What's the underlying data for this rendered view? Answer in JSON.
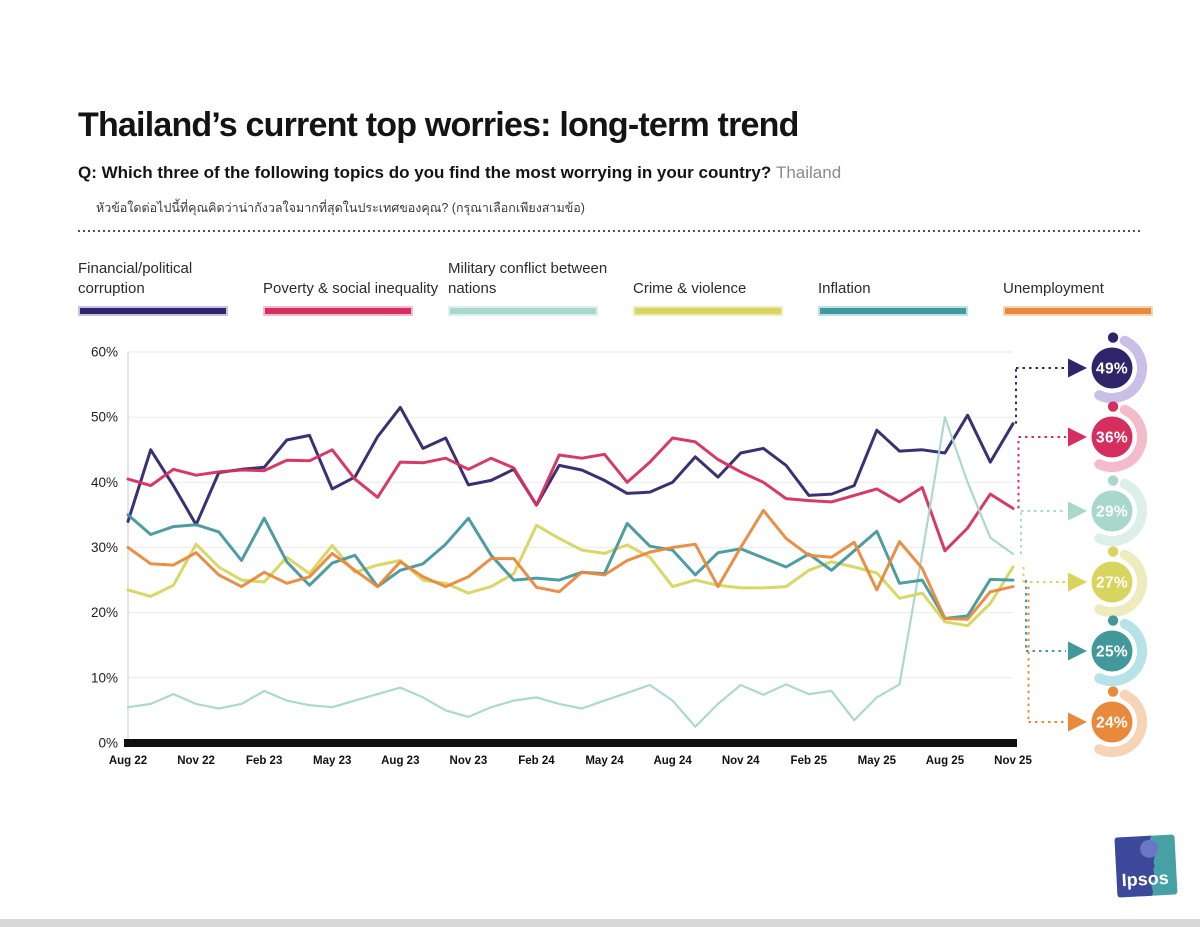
{
  "header": {
    "title": "Thailand’s current top worries: long-term trend",
    "question_prefix": "Q: Which three of the following topics do you find the most worrying in your country?",
    "question_country": "Thailand",
    "question_thai": "หัวข้อใดต่อไปนี้ที่คุณคิดว่าน่ากังวลใจมากที่สุดในประเทศของคุณ? (กรุณาเลือกเพียงสามข้อ)"
  },
  "chart_data": {
    "type": "line",
    "title": "Thailand’s current top worries: long-term trend",
    "xlabel": "",
    "ylabel": "",
    "ylim": [
      0,
      60
    ],
    "grid": "horizontal",
    "legend_position": "top",
    "y_tick_labels": [
      "0%",
      "10%",
      "20%",
      "30%",
      "40%",
      "50%",
      "60%"
    ],
    "x": [
      "Aug 22",
      "Sep 22",
      "Oct 22",
      "Nov 22",
      "Dec 22",
      "Jan 23",
      "Feb 23",
      "Mar 23",
      "Apr 23",
      "May 23",
      "Jun 23",
      "Jul 23",
      "Aug 23",
      "Sep 23",
      "Oct 23",
      "Nov 23",
      "Dec 23",
      "Jan 24",
      "Feb 24",
      "Mar 24",
      "Apr 24",
      "May 24",
      "Jun 24",
      "Jul 24",
      "Aug 24",
      "Sep 24",
      "Oct 24",
      "Nov 24",
      "Dec 24",
      "Jan 25",
      "Feb 25",
      "Mar 25",
      "Apr 25",
      "May 25",
      "Jun 25",
      "Jul 25",
      "Aug 25",
      "Sep 25",
      "Oct 25",
      "Nov 25"
    ],
    "x_tick_labels": [
      "Aug 22",
      "Nov 22",
      "Feb 23",
      "May 23",
      "Aug 23",
      "Nov 23",
      "Feb 24",
      "May 24",
      "Aug 24",
      "Nov 24",
      "Feb 25",
      "May 25",
      "Aug 25",
      "Nov 25"
    ],
    "series": [
      {
        "name": "Financial/political corruption",
        "color": "#2f256b",
        "tint": "#c9bfe7",
        "current_value_label": "49%",
        "current_value": 49,
        "values": [
          34,
          45,
          39.5,
          33.5,
          41.5,
          42,
          42.3,
          46.5,
          47.2,
          39,
          40.8,
          47,
          51.5,
          45.2,
          46.8,
          39.6,
          40.3,
          42,
          36.5,
          42.6,
          41.9,
          40.3,
          38.3,
          38.5,
          40,
          43.9,
          40.8,
          44.5,
          45.2,
          42.6,
          38,
          38.2,
          39.5,
          48,
          44.8,
          45,
          44.5,
          50.3,
          43.1,
          49
        ]
      },
      {
        "name": "Poverty & social inequality",
        "color": "#d62f5f",
        "tint": "#f4bcca",
        "current_value_label": "36%",
        "current_value": 36,
        "values": [
          40.5,
          39.5,
          42,
          41.1,
          41.6,
          41.9,
          41.8,
          43.4,
          43.3,
          45,
          40.5,
          37.7,
          43.1,
          43,
          43.7,
          42,
          43.7,
          42.2,
          36.5,
          44.2,
          43.7,
          44.3,
          40,
          43.1,
          46.8,
          46.2,
          43.5,
          41.6,
          40,
          37.5,
          37.2,
          37,
          38,
          39,
          37,
          39.2,
          29.5,
          33,
          38.2,
          36
        ]
      },
      {
        "name": "Military conflict between nations",
        "color": "#a7d8c9",
        "tint": "#dcf0e9",
        "current_value_label": "29%",
        "current_value": 29,
        "values": [
          5.5,
          6,
          7.5,
          6,
          5.3,
          6,
          8,
          6.5,
          5.8,
          5.5,
          6.5,
          7.5,
          8.5,
          7,
          5,
          4,
          5.5,
          6.5,
          7,
          6,
          5.3,
          6.5,
          7.7,
          8.9,
          6.5,
          2.5,
          6,
          8.9,
          7.4,
          9,
          7.5,
          8,
          3.5,
          7,
          9,
          29,
          50,
          40,
          31.5,
          29
        ]
      },
      {
        "name": "Crime & violence",
        "color": "#d8d55e",
        "tint": "#eeebbd",
        "current_value_label": "27%",
        "current_value": 27,
        "values": [
          23.5,
          22.5,
          24.2,
          30.5,
          27,
          25,
          24.7,
          28.5,
          26,
          30.3,
          26.2,
          27.3,
          28,
          25,
          24.5,
          23,
          24,
          26,
          33.4,
          31.4,
          29.6,
          29.1,
          30.4,
          28.5,
          24,
          25,
          24.2,
          23.8,
          23.8,
          24,
          26.5,
          27.8,
          27,
          26.1,
          22.2,
          23,
          18.6,
          18,
          21.4,
          27
        ]
      },
      {
        "name": "Inflation",
        "color": "#43989c",
        "tint": "#b5e3e7",
        "current_value_label": "25%",
        "current_value": 25,
        "values": [
          35,
          32,
          33.2,
          33.5,
          32.4,
          28,
          34.5,
          27.8,
          24.2,
          27.6,
          28.8,
          24,
          26.5,
          27.5,
          30.5,
          34.5,
          28.8,
          25,
          25.3,
          25,
          26.2,
          26,
          33.7,
          30.2,
          29.6,
          25.8,
          29.2,
          29.8,
          28.4,
          27,
          29,
          26.5,
          29.5,
          32.5,
          24.5,
          25,
          19.1,
          19.5,
          25.1,
          25
        ]
      },
      {
        "name": "Unemployment",
        "color": "#e8893c",
        "tint": "#f6d4b6",
        "current_value_label": "24%",
        "current_value": 24,
        "values": [
          30,
          27.5,
          27.3,
          29.2,
          25.8,
          24,
          26.2,
          24.5,
          25.5,
          29.1,
          26.5,
          24,
          27.8,
          25.5,
          24,
          25.5,
          28.3,
          28.3,
          23.9,
          23.2,
          26.2,
          25.8,
          28,
          29.3,
          30,
          30.5,
          24,
          30,
          35.7,
          31.4,
          28.8,
          28.5,
          30.8,
          23.5,
          30.9,
          26.8,
          19.1,
          19,
          23.2,
          24
        ]
      }
    ]
  },
  "branding": {
    "logo_text": "Ipsos",
    "logo_blue": "#3c4899",
    "logo_teal": "#47a0a4"
  }
}
